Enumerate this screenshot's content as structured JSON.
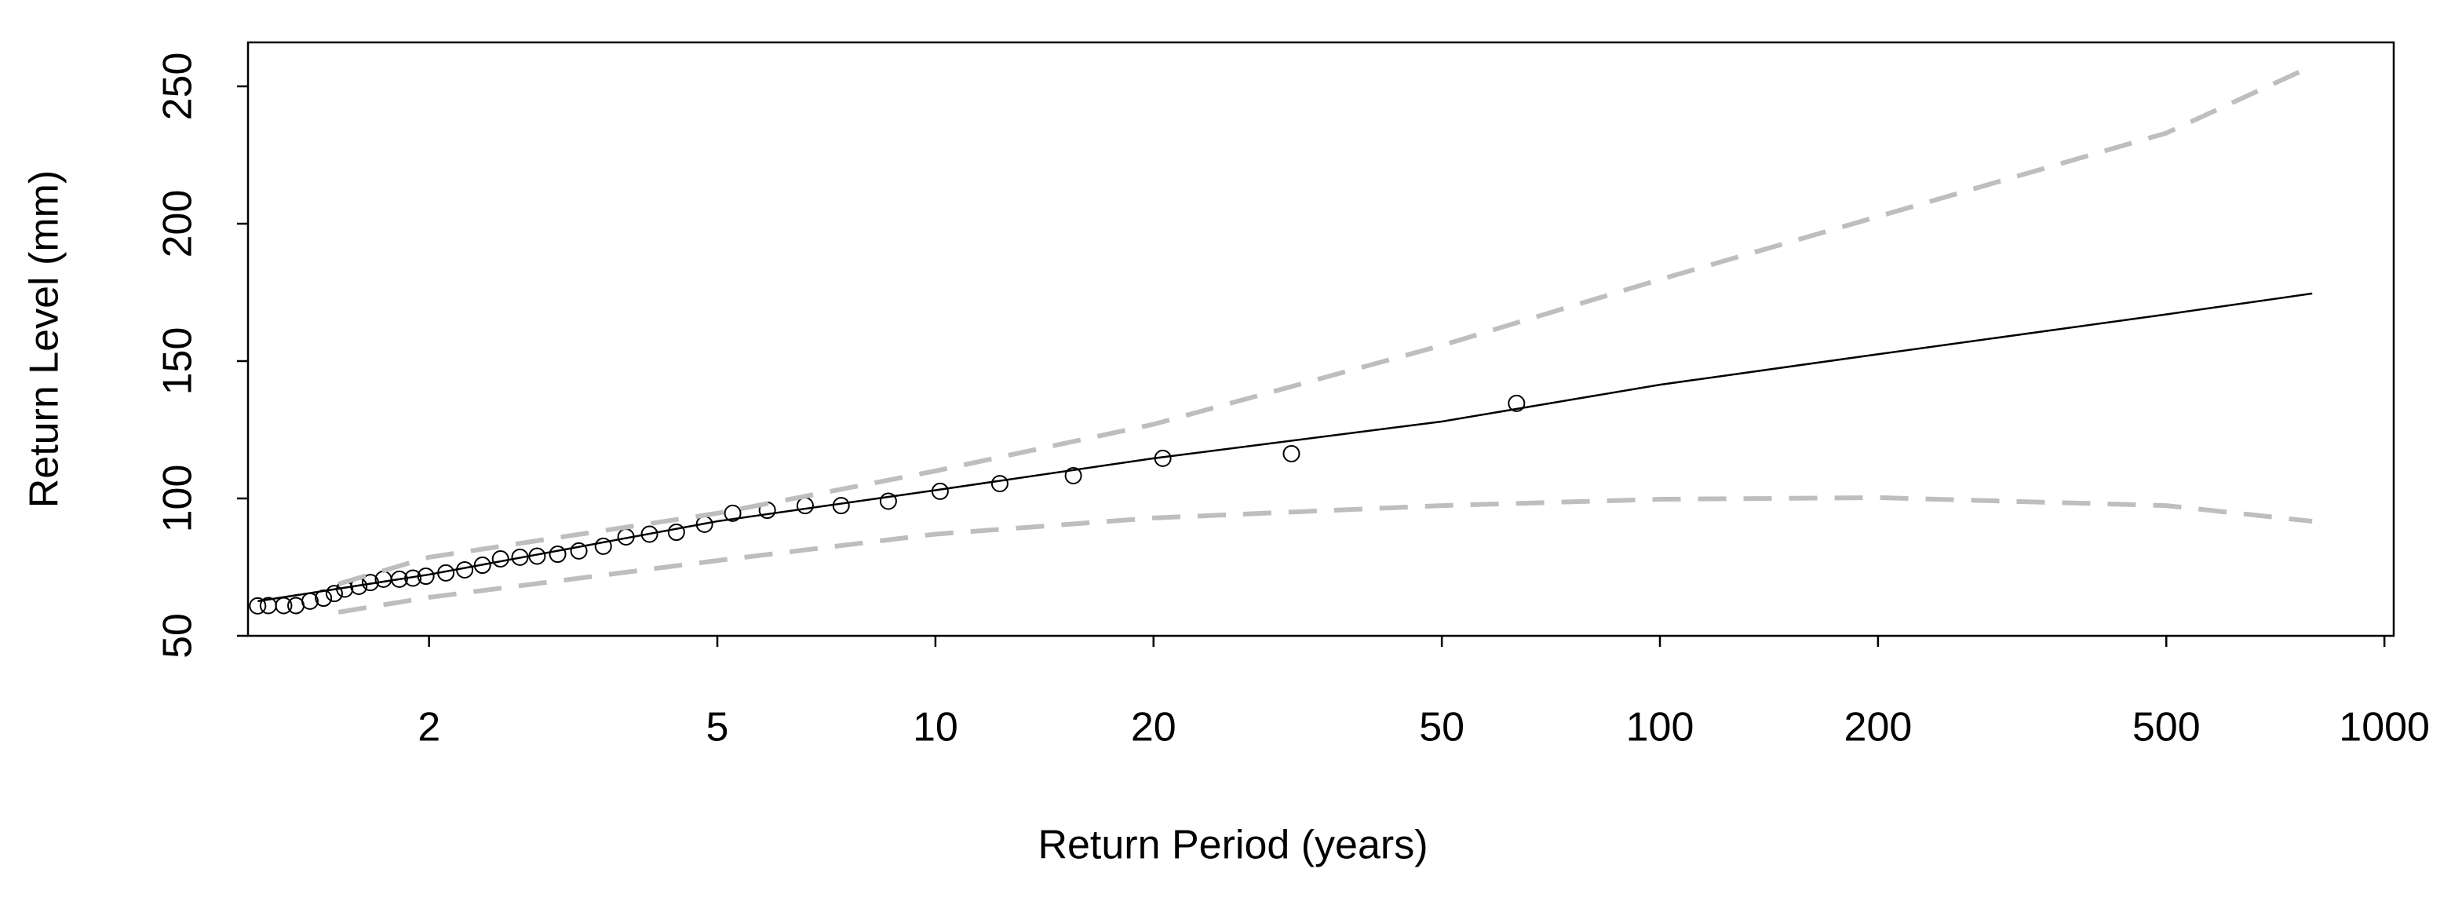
{
  "chart_data": {
    "type": "line",
    "xlabel": "Return Period (years)",
    "ylabel": "Return Level (mm)",
    "xscale": "log",
    "xlim": [
      1.125,
      1030
    ],
    "ylim": [
      50,
      266
    ],
    "xticks": [
      2,
      5,
      10,
      20,
      50,
      100,
      200,
      500,
      1000
    ],
    "yticks": [
      50,
      100,
      150,
      200,
      250
    ],
    "series": [
      {
        "kind": "points",
        "color": "#000000",
        "x": [
          1.16,
          1.2,
          1.26,
          1.31,
          1.37,
          1.43,
          1.48,
          1.53,
          1.6,
          1.66,
          1.73,
          1.82,
          1.9,
          1.98,
          2.11,
          2.24,
          2.37,
          2.51,
          2.67,
          2.82,
          3.01,
          3.22,
          3.48,
          3.74,
          4.03,
          4.39,
          4.8,
          5.25,
          5.86,
          6.61,
          7.41,
          8.61,
          10.15,
          12.27,
          15.5,
          20.6,
          31,
          63.4
        ],
        "values": [
          60.9,
          61,
          61,
          61,
          62.6,
          63.7,
          65.4,
          67,
          68,
          69.4,
          70.6,
          70.6,
          71,
          71.7,
          72.9,
          74,
          75.7,
          78,
          78.6,
          79,
          79.7,
          80.9,
          82.6,
          86,
          87,
          87.7,
          90.6,
          94.6,
          95.7,
          97.4,
          97.4,
          99,
          102.6,
          105.4,
          108.3,
          114.6,
          116.3,
          134.6
        ]
      },
      {
        "kind": "solid",
        "color": "#000000",
        "x": [
          1.16,
          2,
          5,
          10,
          20,
          50,
          100,
          200,
          500,
          795
        ],
        "values": [
          62.6,
          72.3,
          91.7,
          103,
          114.6,
          128,
          141.4,
          152.5,
          167,
          174.6
        ]
      },
      {
        "kind": "dashed",
        "color": "#bebebe",
        "x": [
          1.5,
          2,
          5,
          10,
          20,
          50,
          100,
          200,
          500,
          795
        ],
        "values": [
          68.9,
          78.6,
          94.6,
          110,
          127,
          155.7,
          179.7,
          202.6,
          233,
          257.4
        ]
      },
      {
        "kind": "dashed",
        "color": "#bebebe",
        "x": [
          1.5,
          2,
          5,
          10,
          20,
          50,
          100,
          200,
          500,
          795
        ],
        "values": [
          58.6,
          64,
          77.4,
          87,
          92.9,
          97.4,
          99.7,
          100.3,
          97.4,
          91.7
        ]
      }
    ]
  }
}
